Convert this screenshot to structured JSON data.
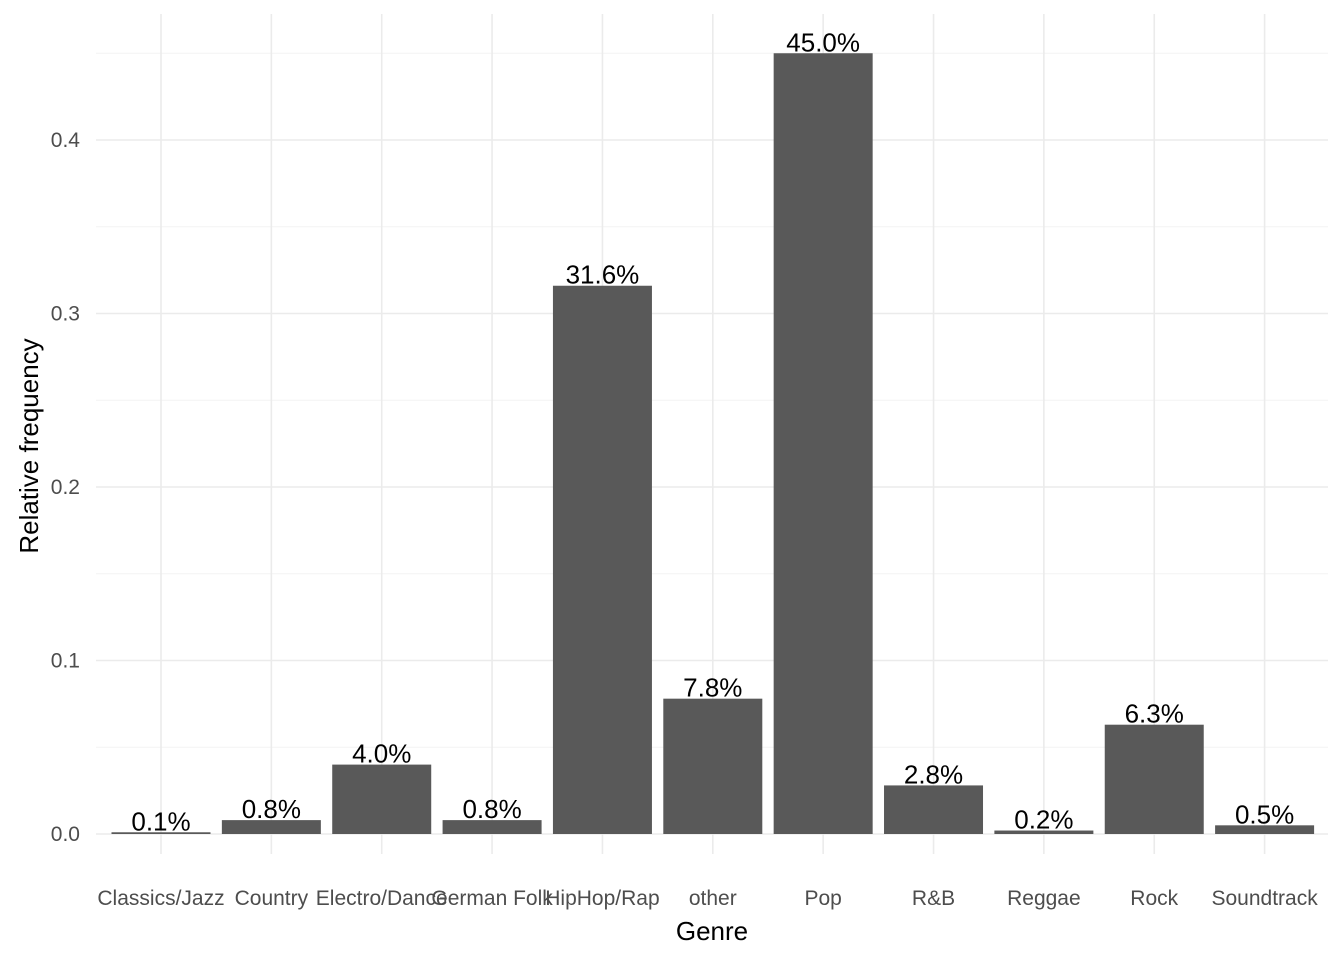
{
  "chart_data": {
    "type": "bar",
    "title": "",
    "xlabel": "Genre",
    "ylabel": "Relative frequency",
    "categories": [
      "Classics/Jazz",
      "Country",
      "Electro/Dance",
      "German Folk",
      "HipHop/Rap",
      "other",
      "Pop",
      "R&B",
      "Reggae",
      "Rock",
      "Soundtrack"
    ],
    "values": [
      0.001,
      0.008,
      0.04,
      0.008,
      0.316,
      0.078,
      0.45,
      0.028,
      0.002,
      0.063,
      0.005
    ],
    "data_labels": [
      "0.1%",
      "0.8%",
      "4.0%",
      "0.8%",
      "31.6%",
      "7.8%",
      "45.0%",
      "2.8%",
      "0.2%",
      "6.3%",
      "0.5%"
    ],
    "y_ticks": [
      0.0,
      0.1,
      0.2,
      0.3,
      0.4
    ],
    "y_tick_labels": [
      "0.0",
      "0.1",
      "0.2",
      "0.3",
      "0.4"
    ],
    "ylim": [
      0,
      0.45
    ],
    "grid": true,
    "legend": "none",
    "colors": {
      "bar": "#595959",
      "grid_major": "#ebebeb",
      "grid_minor": "#f3f3f3",
      "tick_text": "#4d4d4d",
      "label_text": "#000000"
    }
  }
}
